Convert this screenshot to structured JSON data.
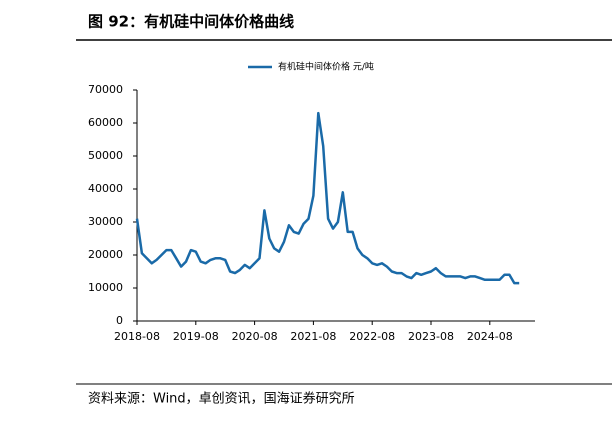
{
  "chart_data": {
    "type": "line",
    "title": "图 92：有机硅中间体价格曲线",
    "source": "资料来源：Wind，卓创资讯，国海证券研究所",
    "x": [
      "2018-08",
      "2018-09",
      "2018-10",
      "2018-11",
      "2018-12",
      "2019-01",
      "2019-02",
      "2019-03",
      "2019-04",
      "2019-05",
      "2019-06",
      "2019-07",
      "2019-08",
      "2019-09",
      "2019-10",
      "2019-11",
      "2019-12",
      "2020-01",
      "2020-02",
      "2020-03",
      "2020-04",
      "2020-05",
      "2020-06",
      "2020-07",
      "2020-08",
      "2020-09",
      "2020-10",
      "2020-11",
      "2020-12",
      "2021-01",
      "2021-02",
      "2021-03",
      "2021-04",
      "2021-05",
      "2021-06",
      "2021-07",
      "2021-08",
      "2021-09",
      "2021-10",
      "2021-11",
      "2021-12",
      "2022-01",
      "2022-02",
      "2022-03",
      "2022-04",
      "2022-05",
      "2022-06",
      "2022-07",
      "2022-08",
      "2022-09",
      "2022-10",
      "2022-11",
      "2022-12",
      "2023-01",
      "2023-02",
      "2023-03",
      "2023-04",
      "2023-05",
      "2023-06",
      "2023-07",
      "2023-08",
      "2023-09",
      "2023-10",
      "2023-11",
      "2023-12",
      "2024-01",
      "2024-02",
      "2024-03",
      "2024-04",
      "2024-05",
      "2024-06",
      "2024-07",
      "2024-08",
      "2024-09",
      "2024-10",
      "2024-11",
      "2024-12",
      "2025-01",
      "2025-02"
    ],
    "series": [
      {
        "name": "有机硅中间体价格  元/吨",
        "color": "#1a6aa8",
        "values": [
          31000,
          20500,
          19000,
          17500,
          18500,
          20000,
          21500,
          21500,
          19000,
          16500,
          18000,
          21500,
          21000,
          18000,
          17500,
          18500,
          19000,
          19000,
          18500,
          15000,
          14500,
          15500,
          17000,
          16000,
          17500,
          19000,
          33500,
          25000,
          22000,
          21000,
          24000,
          29000,
          27000,
          26500,
          29500,
          31000,
          38000,
          63000,
          53000,
          31000,
          28000,
          30000,
          39000,
          27000,
          27000,
          22000,
          20000,
          19000,
          17500,
          17000,
          17500,
          16500,
          15000,
          14500,
          14500,
          13500,
          13000,
          14500,
          14000,
          14500,
          15000,
          16000,
          14500,
          13500,
          13500,
          13500,
          13500,
          13000,
          13500,
          13500,
          13000,
          12500,
          12500,
          12500,
          12500,
          14000,
          14000,
          11500,
          11500
        ]
      }
    ],
    "xticks": [
      "2018-08",
      "2019-08",
      "2020-08",
      "2021-08",
      "2022-08",
      "2023-08",
      "2024-08"
    ],
    "ylim": [
      0,
      70000
    ],
    "yticks": [
      0,
      10000,
      20000,
      30000,
      40000,
      50000,
      60000,
      70000
    ]
  }
}
